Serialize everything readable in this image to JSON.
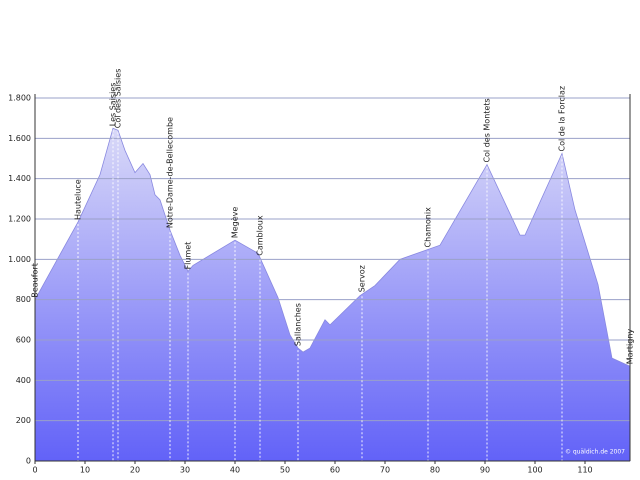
{
  "chart_data": {
    "type": "area",
    "x": [
      0,
      8.6,
      13,
      15.6,
      16.6,
      18,
      20,
      21.6,
      23,
      24,
      25,
      27,
      29,
      30.6,
      31.6,
      40,
      44.6,
      48.6,
      51,
      52.6,
      53.6,
      55,
      58,
      59,
      65,
      68,
      73,
      81,
      90.4,
      97,
      98,
      105.4,
      108,
      112.6,
      115.4,
      119
    ],
    "values": [
      800,
      1185,
      1420,
      1650,
      1640,
      1540,
      1430,
      1475,
      1420,
      1320,
      1295,
      1145,
      1020,
      940,
      970,
      1095,
      1030,
      810,
      625,
      560,
      540,
      560,
      700,
      675,
      820,
      870,
      1000,
      1070,
      1470,
      1120,
      1120,
      1525,
      1245,
      875,
      510,
      470
    ],
    "xlim": [
      0,
      119
    ],
    "xticks": [
      0,
      10,
      20,
      30,
      40,
      50,
      60,
      70,
      80,
      90,
      100,
      110
    ],
    "ylim": [
      0,
      1800
    ],
    "yticks": [
      0,
      200,
      400,
      600,
      800,
      {
        "value": 1000,
        "label": "1.000"
      },
      {
        "value": 1200,
        "label": "1.200"
      },
      {
        "value": 1400,
        "label": "1.400"
      },
      {
        "value": 1600,
        "label": "1.600"
      },
      {
        "value": 1800,
        "label": "1.800"
      }
    ],
    "grid": true,
    "color_top": "#e4e4f8",
    "color_bottom": "#6262f8",
    "annotations": [
      {
        "label": "Beaufort",
        "x": 0
      },
      {
        "label": "Hauteluce",
        "x": 8.6
      },
      {
        "label": "Les Saisies",
        "x": 15.6
      },
      {
        "label": "Col des Saisies",
        "x": 16.6
      },
      {
        "label": "Notre-Dame-de-Bellecombe",
        "x": 27
      },
      {
        "label": "Flumet",
        "x": 30.6
      },
      {
        "label": "Megève",
        "x": 40
      },
      {
        "label": "Cambloux",
        "x": 45
      },
      {
        "label": "Sallanches",
        "x": 52.6
      },
      {
        "label": "Servoz",
        "x": 65.4
      },
      {
        "label": "Chamonix",
        "x": 78.6
      },
      {
        "label": "Col des Montets",
        "x": 90.4
      },
      {
        "label": "Col de la Forclaz",
        "x": 105.4
      },
      {
        "label": "Martigny",
        "x": 119
      }
    ],
    "credit": "© quäldich.de 2007"
  }
}
